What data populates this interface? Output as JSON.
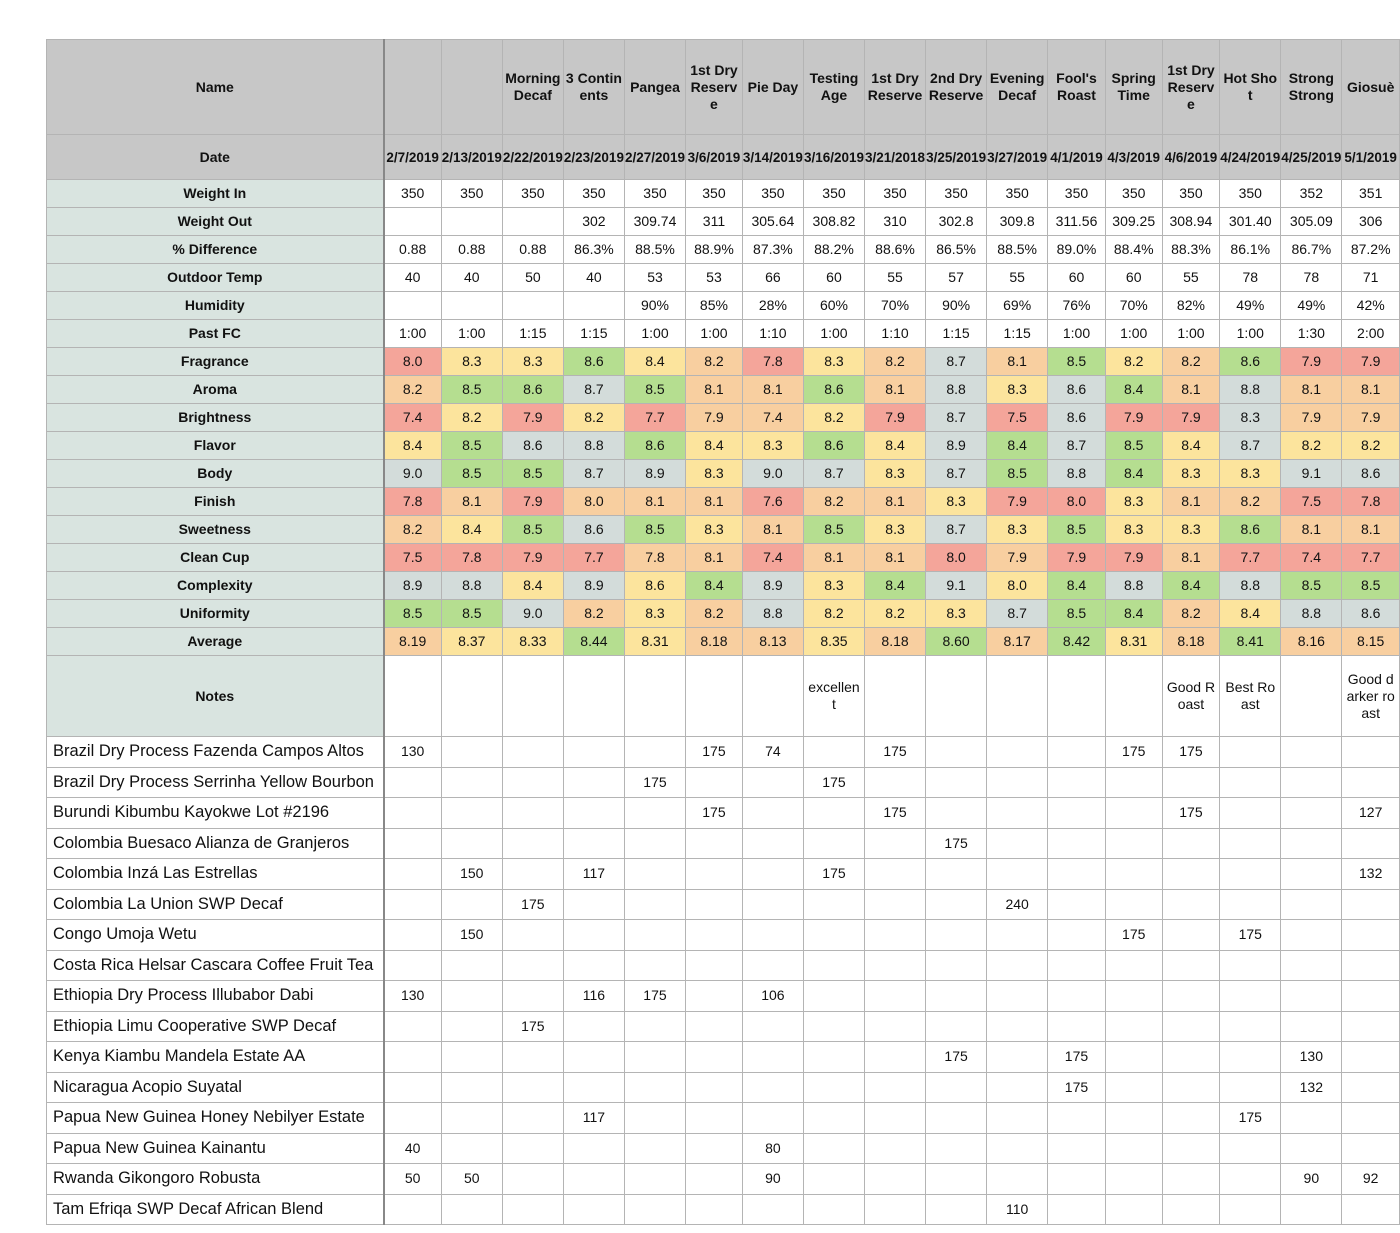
{
  "header": {
    "name_label": "Name",
    "date_label": "Date"
  },
  "columns": [
    {
      "name": "",
      "date": "2/7/2019"
    },
    {
      "name": "",
      "date": "2/13/2019"
    },
    {
      "name": "Morning Decaf",
      "date": "2/22/2019"
    },
    {
      "name": "3 Continents",
      "date": "2/23/2019"
    },
    {
      "name": "Pangea",
      "date": "2/27/2019"
    },
    {
      "name": "1st Dry Reserve",
      "date": "3/6/2019"
    },
    {
      "name": "Pie Day",
      "date": "3/14/2019"
    },
    {
      "name": "Testing Age",
      "date": "3/16/2019"
    },
    {
      "name": "1st Dry Reserve",
      "date": "3/21/2018"
    },
    {
      "name": "2nd Dry Reserve",
      "date": "3/25/2019"
    },
    {
      "name": "Evening Decaf",
      "date": "3/27/2019"
    },
    {
      "name": "Fool's Roast",
      "date": "4/1/2019"
    },
    {
      "name": "Spring Time",
      "date": "4/3/2019"
    },
    {
      "name": "1st Dry Reserve",
      "date": "4/6/2019"
    },
    {
      "name": "Hot Shot",
      "date": "4/24/2019"
    },
    {
      "name": "Strong Strong",
      "date": "4/25/2019"
    },
    {
      "name": "Giosuè",
      "date": "5/1/2019"
    }
  ],
  "metric_rows": [
    {
      "label": "Weight In",
      "values": [
        "350",
        "350",
        "350",
        "350",
        "350",
        "350",
        "350",
        "350",
        "350",
        "350",
        "350",
        "350",
        "350",
        "350",
        "350",
        "352",
        "351"
      ]
    },
    {
      "label": "Weight Out",
      "values": [
        "",
        "",
        "",
        "302",
        "309.74",
        "311",
        "305.64",
        "308.82",
        "310",
        "302.8",
        "309.8",
        "311.56",
        "309.25",
        "308.94",
        "301.40",
        "305.09",
        "306"
      ]
    },
    {
      "label": "% Difference",
      "values": [
        "0.88",
        "0.88",
        "0.88",
        "86.3%",
        "88.5%",
        "88.9%",
        "87.3%",
        "88.2%",
        "88.6%",
        "86.5%",
        "88.5%",
        "89.0%",
        "88.4%",
        "88.3%",
        "86.1%",
        "86.7%",
        "87.2%"
      ]
    },
    {
      "label": "Outdoor Temp",
      "values": [
        "40",
        "40",
        "50",
        "40",
        "53",
        "53",
        "66",
        "60",
        "55",
        "57",
        "55",
        "60",
        "60",
        "55",
        "78",
        "78",
        "71"
      ]
    },
    {
      "label": "Humidity",
      "values": [
        "",
        "",
        "",
        "",
        "90%",
        "85%",
        "28%",
        "60%",
        "70%",
        "90%",
        "69%",
        "76%",
        "70%",
        "82%",
        "49%",
        "49%",
        "42%"
      ]
    },
    {
      "label": "Past FC",
      "values": [
        "1:00",
        "1:00",
        "1:15",
        "1:15",
        "1:00",
        "1:00",
        "1:10",
        "1:00",
        "1:10",
        "1:15",
        "1:15",
        "1:00",
        "1:00",
        "1:00",
        "1:00",
        "1:30",
        "2:00"
      ]
    }
  ],
  "score_colors": {
    "r": "#f4a59a",
    "o": "#f8cfa0",
    "y": "#fce49d",
    "g": "#b5de90",
    "s": "#d3dcda"
  },
  "score_rows": [
    {
      "label": "Fragrance",
      "values": [
        "8.0",
        "8.3",
        "8.3",
        "8.6",
        "8.4",
        "8.2",
        "7.8",
        "8.3",
        "8.2",
        "8.7",
        "8.1",
        "8.5",
        "8.2",
        "8.2",
        "8.6",
        "7.9",
        "7.9"
      ],
      "colors": [
        "r",
        "y",
        "y",
        "g",
        "y",
        "o",
        "r",
        "y",
        "o",
        "s",
        "o",
        "g",
        "y",
        "o",
        "g",
        "r",
        "r"
      ]
    },
    {
      "label": "Aroma",
      "values": [
        "8.2",
        "8.5",
        "8.6",
        "8.7",
        "8.5",
        "8.1",
        "8.1",
        "8.6",
        "8.1",
        "8.8",
        "8.3",
        "8.6",
        "8.4",
        "8.1",
        "8.8",
        "8.1",
        "8.1"
      ],
      "colors": [
        "o",
        "g",
        "g",
        "s",
        "g",
        "o",
        "o",
        "g",
        "o",
        "s",
        "y",
        "s",
        "g",
        "o",
        "s",
        "o",
        "o"
      ]
    },
    {
      "label": "Brightness",
      "values": [
        "7.4",
        "8.2",
        "7.9",
        "8.2",
        "7.7",
        "7.9",
        "7.4",
        "8.2",
        "7.9",
        "8.7",
        "7.5",
        "8.6",
        "7.9",
        "7.9",
        "8.3",
        "7.9",
        "7.9"
      ],
      "colors": [
        "r",
        "y",
        "r",
        "y",
        "r",
        "o",
        "o",
        "y",
        "r",
        "s",
        "r",
        "s",
        "r",
        "r",
        "s",
        "o",
        "o"
      ]
    },
    {
      "label": "Flavor",
      "values": [
        "8.4",
        "8.5",
        "8.6",
        "8.8",
        "8.6",
        "8.4",
        "8.3",
        "8.6",
        "8.4",
        "8.9",
        "8.4",
        "8.7",
        "8.5",
        "8.4",
        "8.7",
        "8.2",
        "8.2"
      ],
      "colors": [
        "y",
        "g",
        "s",
        "s",
        "g",
        "y",
        "y",
        "g",
        "y",
        "s",
        "g",
        "s",
        "g",
        "y",
        "s",
        "y",
        "y"
      ]
    },
    {
      "label": "Body",
      "values": [
        "9.0",
        "8.5",
        "8.5",
        "8.7",
        "8.9",
        "8.3",
        "9.0",
        "8.7",
        "8.3",
        "8.7",
        "8.5",
        "8.8",
        "8.4",
        "8.3",
        "8.3",
        "9.1",
        "8.6"
      ],
      "colors": [
        "s",
        "g",
        "g",
        "s",
        "s",
        "y",
        "s",
        "s",
        "y",
        "s",
        "g",
        "s",
        "g",
        "y",
        "y",
        "s",
        "s"
      ]
    },
    {
      "label": "Finish",
      "values": [
        "7.8",
        "8.1",
        "7.9",
        "8.0",
        "8.1",
        "8.1",
        "7.6",
        "8.2",
        "8.1",
        "8.3",
        "7.9",
        "8.0",
        "8.3",
        "8.1",
        "8.2",
        "7.5",
        "7.8"
      ],
      "colors": [
        "r",
        "o",
        "r",
        "o",
        "o",
        "o",
        "r",
        "o",
        "o",
        "y",
        "r",
        "r",
        "y",
        "o",
        "o",
        "r",
        "r"
      ]
    },
    {
      "label": "Sweetness",
      "values": [
        "8.2",
        "8.4",
        "8.5",
        "8.6",
        "8.5",
        "8.3",
        "8.1",
        "8.5",
        "8.3",
        "8.7",
        "8.3",
        "8.5",
        "8.3",
        "8.3",
        "8.6",
        "8.1",
        "8.1"
      ],
      "colors": [
        "o",
        "y",
        "g",
        "s",
        "g",
        "y",
        "o",
        "g",
        "y",
        "s",
        "y",
        "g",
        "y",
        "y",
        "g",
        "o",
        "o"
      ]
    },
    {
      "label": "Clean Cup",
      "values": [
        "7.5",
        "7.8",
        "7.9",
        "7.7",
        "7.8",
        "8.1",
        "7.4",
        "8.1",
        "8.1",
        "8.0",
        "7.9",
        "7.9",
        "7.9",
        "8.1",
        "7.7",
        "7.4",
        "7.7"
      ],
      "colors": [
        "r",
        "r",
        "r",
        "r",
        "o",
        "o",
        "r",
        "o",
        "o",
        "r",
        "o",
        "r",
        "r",
        "o",
        "r",
        "r",
        "r"
      ]
    },
    {
      "label": "Complexity",
      "values": [
        "8.9",
        "8.8",
        "8.4",
        "8.9",
        "8.6",
        "8.4",
        "8.9",
        "8.3",
        "8.4",
        "9.1",
        "8.0",
        "8.4",
        "8.8",
        "8.4",
        "8.8",
        "8.5",
        "8.5"
      ],
      "colors": [
        "s",
        "s",
        "y",
        "s",
        "y",
        "g",
        "s",
        "y",
        "g",
        "s",
        "y",
        "g",
        "s",
        "g",
        "s",
        "g",
        "g"
      ]
    },
    {
      "label": "Uniformity",
      "values": [
        "8.5",
        "8.5",
        "9.0",
        "8.2",
        "8.3",
        "8.2",
        "8.8",
        "8.2",
        "8.2",
        "8.3",
        "8.7",
        "8.5",
        "8.4",
        "8.2",
        "8.4",
        "8.8",
        "8.6"
      ],
      "colors": [
        "g",
        "g",
        "s",
        "o",
        "y",
        "o",
        "s",
        "y",
        "y",
        "y",
        "s",
        "g",
        "g",
        "o",
        "y",
        "s",
        "s"
      ]
    },
    {
      "label": "Average",
      "values": [
        "8.19",
        "8.37",
        "8.33",
        "8.44",
        "8.31",
        "8.18",
        "8.13",
        "8.35",
        "8.18",
        "8.60",
        "8.17",
        "8.42",
        "8.31",
        "8.18",
        "8.41",
        "8.16",
        "8.15"
      ],
      "colors": [
        "o",
        "y",
        "y",
        "g",
        "y",
        "o",
        "o",
        "y",
        "o",
        "g",
        "o",
        "g",
        "y",
        "o",
        "g",
        "o",
        "o"
      ]
    }
  ],
  "notes": {
    "label": "Notes",
    "values": [
      "",
      "",
      "",
      "",
      "",
      "",
      "",
      "excellent",
      "",
      "",
      "",
      "",
      "",
      "Good Roast",
      "Best Roast",
      "",
      "Good darker roast"
    ]
  },
  "beans": [
    {
      "name": "Brazil Dry Process Fazenda Campos Altos",
      "values": [
        "130",
        "",
        "",
        "",
        "",
        "175",
        "74",
        "",
        "175",
        "",
        "",
        "",
        "175",
        "175",
        "",
        "",
        ""
      ]
    },
    {
      "name": "Brazil Dry Process Serrinha Yellow Bourbon",
      "values": [
        "",
        "",
        "",
        "",
        "175",
        "",
        "",
        "175",
        "",
        "",
        "",
        "",
        "",
        "",
        "",
        "",
        ""
      ]
    },
    {
      "name": "Burundi Kibumbu Kayokwe Lot #2196",
      "values": [
        "",
        "",
        "",
        "",
        "",
        "175",
        "",
        "",
        "175",
        "",
        "",
        "",
        "",
        "175",
        "",
        "",
        "127"
      ]
    },
    {
      "name": "Colombia Buesaco Alianza de Granjeros",
      "values": [
        "",
        "",
        "",
        "",
        "",
        "",
        "",
        "",
        "",
        "175",
        "",
        "",
        "",
        "",
        "",
        "",
        ""
      ]
    },
    {
      "name": "Colombia Inzá Las Estrellas",
      "values": [
        "",
        "150",
        "",
        "117",
        "",
        "",
        "",
        "175",
        "",
        "",
        "",
        "",
        "",
        "",
        "",
        "",
        "132"
      ]
    },
    {
      "name": "Colombia La Union SWP Decaf",
      "values": [
        "",
        "",
        "175",
        "",
        "",
        "",
        "",
        "",
        "",
        "",
        "240",
        "",
        "",
        "",
        "",
        "",
        ""
      ]
    },
    {
      "name": "Congo Umoja Wetu",
      "values": [
        "",
        "150",
        "",
        "",
        "",
        "",
        "",
        "",
        "",
        "",
        "",
        "",
        "175",
        "",
        "175",
        "",
        ""
      ]
    },
    {
      "name": "Costa Rica Helsar Cascara Coffee Fruit Tea",
      "values": [
        "",
        "",
        "",
        "",
        "",
        "",
        "",
        "",
        "",
        "",
        "",
        "",
        "",
        "",
        "",
        "",
        ""
      ]
    },
    {
      "name": "Ethiopia Dry Process Illubabor Dabi",
      "values": [
        "130",
        "",
        "",
        "116",
        "175",
        "",
        "106",
        "",
        "",
        "",
        "",
        "",
        "",
        "",
        "",
        "",
        ""
      ]
    },
    {
      "name": "Ethiopia Limu Cooperative SWP Decaf",
      "values": [
        "",
        "",
        "175",
        "",
        "",
        "",
        "",
        "",
        "",
        "",
        "",
        "",
        "",
        "",
        "",
        "",
        ""
      ]
    },
    {
      "name": "Kenya Kiambu Mandela Estate AA",
      "values": [
        "",
        "",
        "",
        "",
        "",
        "",
        "",
        "",
        "",
        "175",
        "",
        "175",
        "",
        "",
        "",
        "130",
        ""
      ]
    },
    {
      "name": "Nicaragua Acopio Suyatal",
      "values": [
        "",
        "",
        "",
        "",
        "",
        "",
        "",
        "",
        "",
        "",
        "",
        "175",
        "",
        "",
        "",
        "132",
        ""
      ]
    },
    {
      "name": "Papua New Guinea Honey Nebilyer Estate",
      "values": [
        "",
        "",
        "",
        "117",
        "",
        "",
        "",
        "",
        "",
        "",
        "",
        "",
        "",
        "",
        "175",
        "",
        ""
      ]
    },
    {
      "name": "Papua New Guinea Kainantu",
      "values": [
        "40",
        "",
        "",
        "",
        "",
        "",
        "80",
        "",
        "",
        "",
        "",
        "",
        "",
        "",
        "",
        "",
        ""
      ]
    },
    {
      "name": "Rwanda Gikongoro Robusta",
      "values": [
        "50",
        "50",
        "",
        "",
        "",
        "",
        "90",
        "",
        "",
        "",
        "",
        "",
        "",
        "",
        "",
        "90",
        "92"
      ]
    },
    {
      "name": "Tam Efriqa SWP Decaf African Blend",
      "values": [
        "",
        "",
        "",
        "",
        "",
        "",
        "",
        "",
        "",
        "",
        "110",
        "",
        "",
        "",
        "",
        "",
        ""
      ]
    }
  ]
}
